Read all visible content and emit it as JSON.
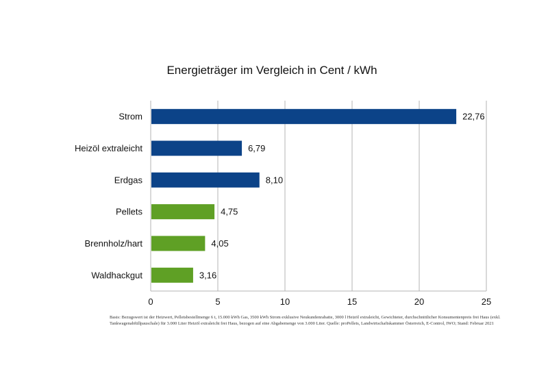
{
  "chart_data": {
    "type": "bar",
    "orientation": "horizontal",
    "title": "Energieträger im Vergleich in Cent / kWh",
    "categories": [
      "Strom",
      "Heizöl extraleicht",
      "Erdgas",
      "Pellets",
      "Brennholz/hart",
      "Waldhackgut"
    ],
    "values": [
      22.76,
      6.79,
      8.1,
      4.75,
      4.05,
      3.16
    ],
    "value_labels": [
      "22,76",
      "6,79",
      "8,10",
      "4,75",
      "4,05",
      "3,16"
    ],
    "bar_colors": [
      "#0c4388",
      "#0c4388",
      "#0c4388",
      "#5fa025",
      "#5fa025",
      "#5fa025"
    ],
    "xlim": [
      0,
      25
    ],
    "xticks": [
      0,
      5,
      10,
      15,
      20,
      25
    ],
    "xtick_labels": [
      "0",
      "5",
      "10",
      "15",
      "20",
      "25"
    ],
    "grid": "vertical",
    "legend": "none"
  },
  "footnote": "Basis: Bezugswert ist der Heizwert, Pelletsbestellmenge 6 t, 15.000 kWh Gas, 3500 kWh Strom exklusive Neukundenrabatte, 3000 l Heizöl extraleicht, Gewichteter, durchschnittlicher Konsumentenpreis frei Haus (exkl. Tankwagenabfüllpauschale) für 3.000 Liter Heizöl extraleicht frei Haus, bezogen auf eine Abgabemenge von 3.000 Liter. Quelle: proPellets, Landwirtschaftskammer Österreich, E-Control, IWO; Stand: Februar 2021"
}
